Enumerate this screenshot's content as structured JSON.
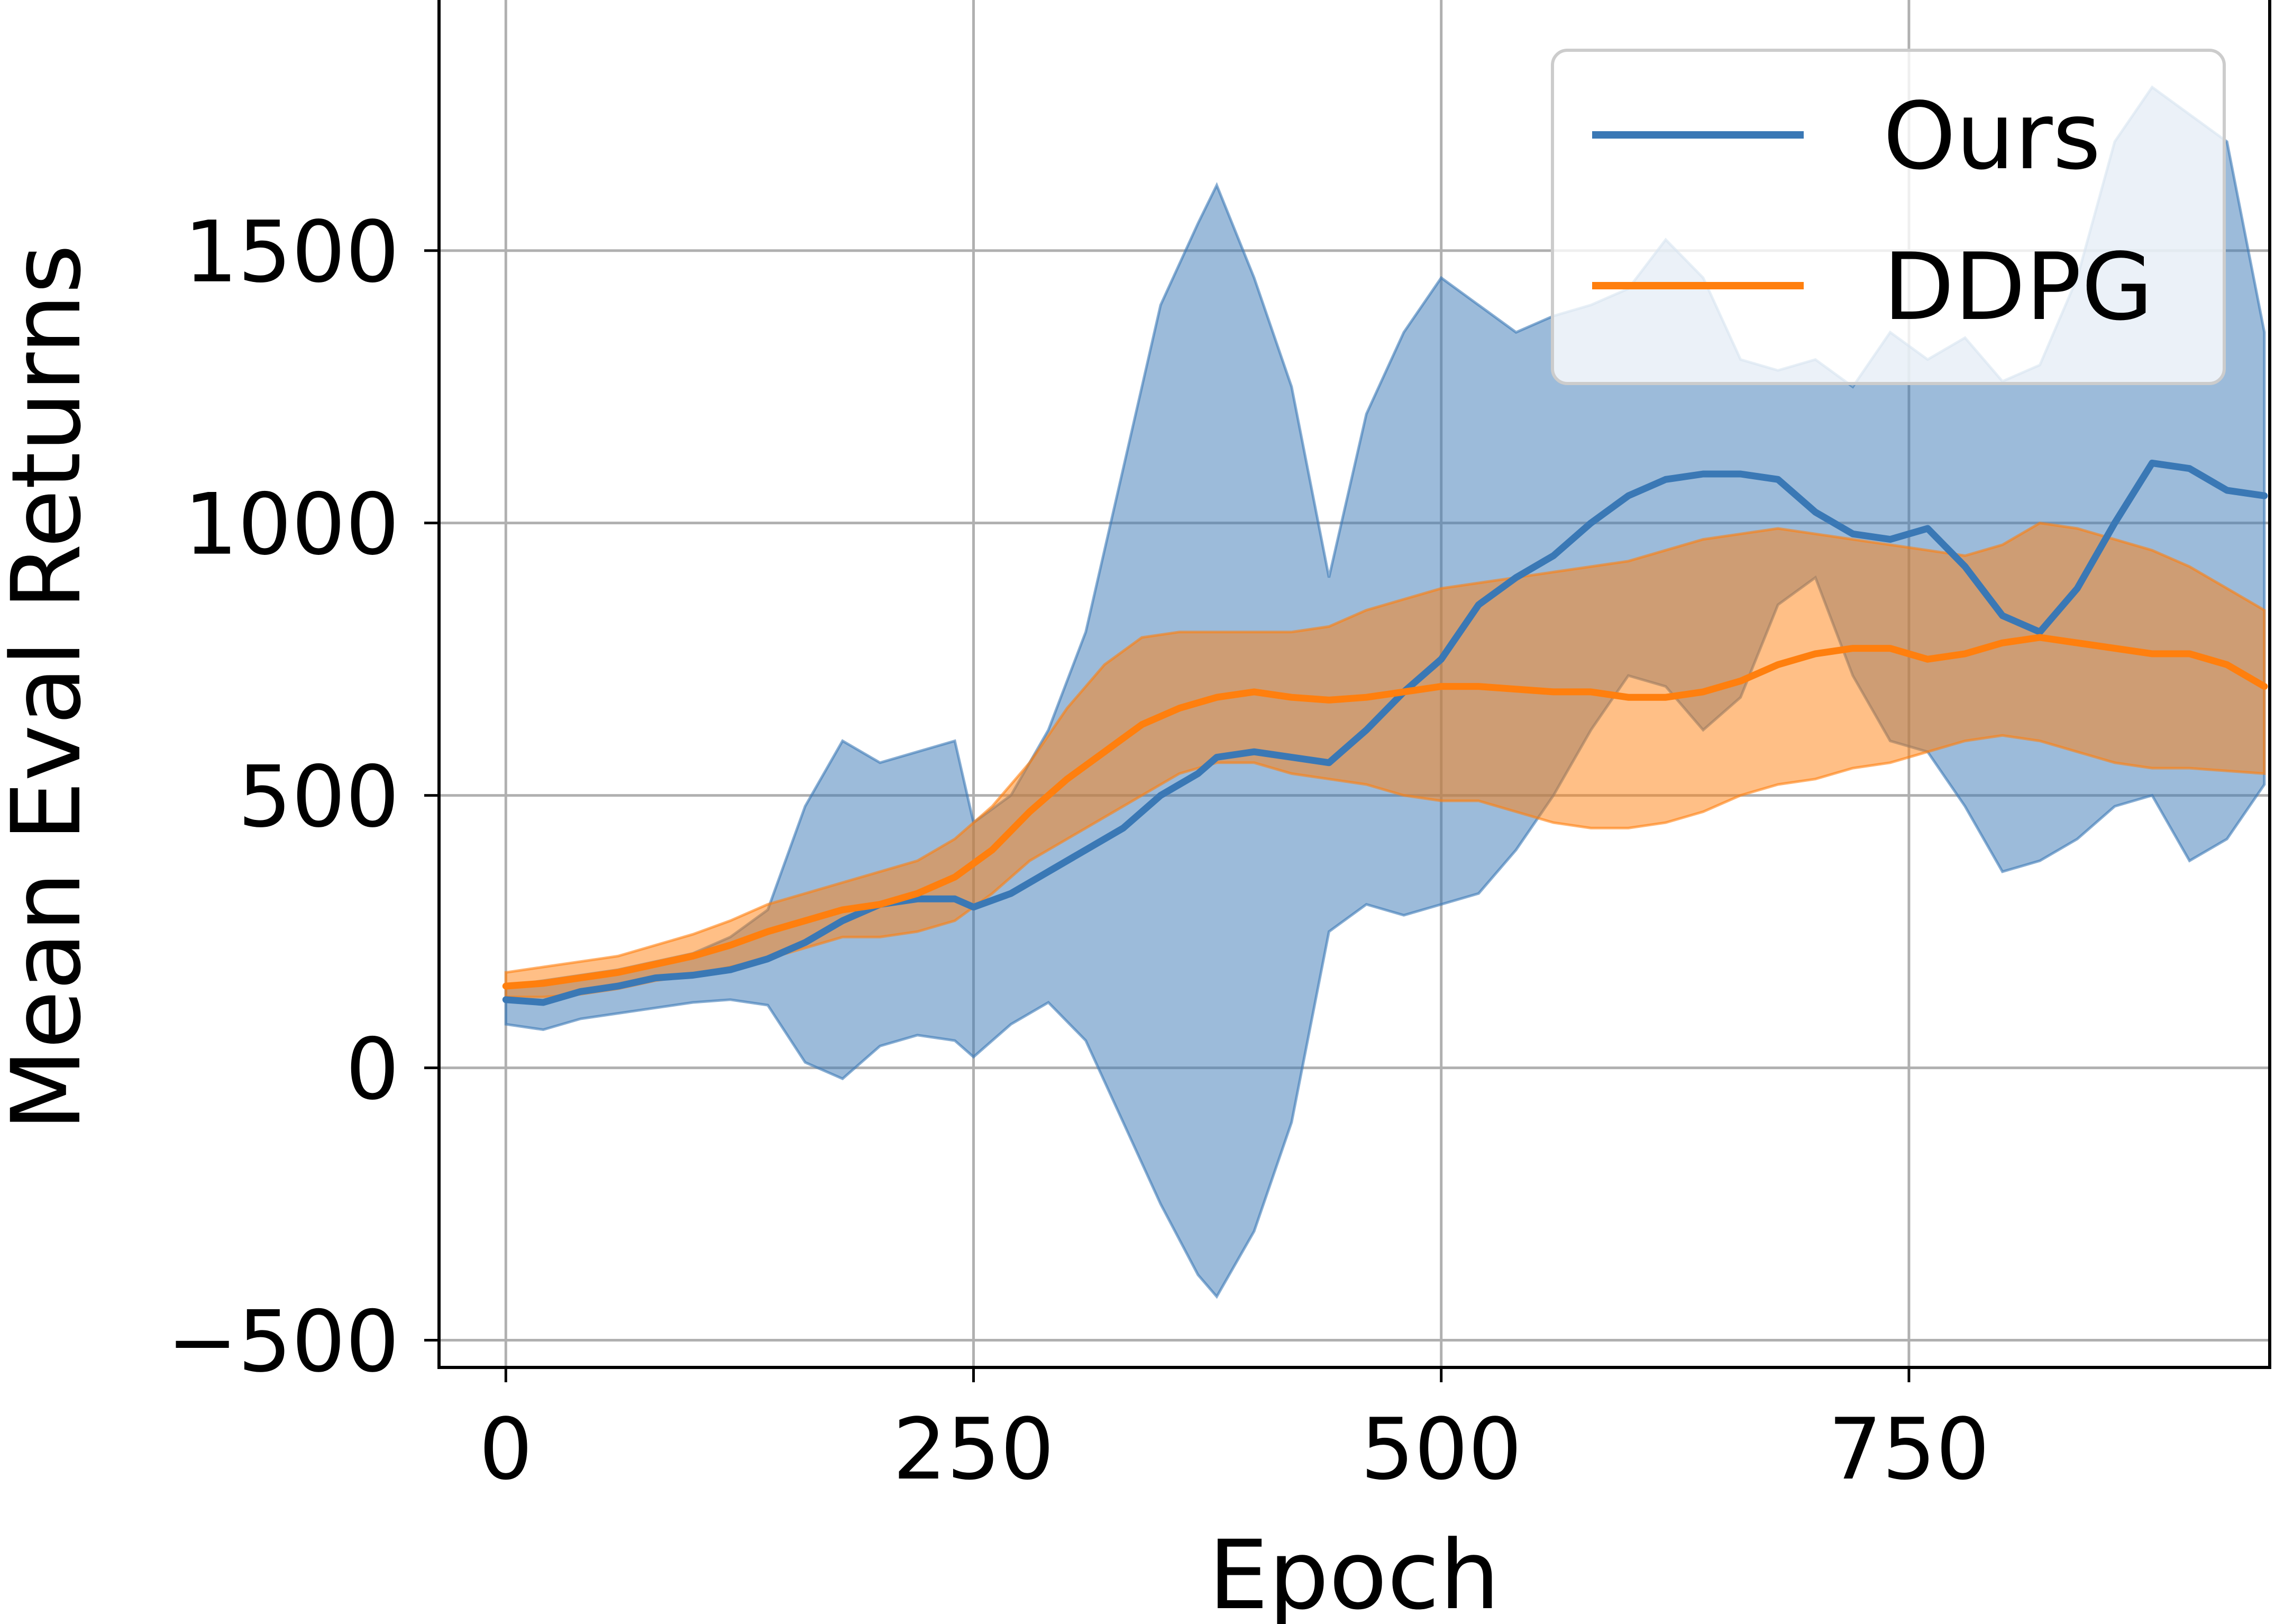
{
  "chart_data": {
    "type": "line",
    "xlabel": "Epoch",
    "ylabel": "Mean Eval Returns",
    "xlim": [
      -150,
      3960
    ],
    "ylim": [
      -550,
      1960
    ],
    "x_ticks": [
      0,
      250,
      500,
      750
    ],
    "x_tick_labels": [
      "0",
      "250",
      "500",
      "750"
    ],
    "y_ticks": [
      -500,
      0,
      500,
      1000,
      1500
    ],
    "y_tick_labels": [
      "−500",
      "0",
      "500",
      "1000",
      "1500"
    ],
    "grid": true,
    "legend_position": "top-right",
    "series": [
      {
        "name": "Ours",
        "color": "#3a78b5",
        "x": [
          0,
          20,
          40,
          60,
          80,
          100,
          120,
          140,
          160,
          180,
          200,
          220,
          240,
          250,
          270,
          290,
          310,
          330,
          350,
          370,
          380,
          400,
          420,
          440,
          460,
          480,
          500,
          520,
          540,
          560,
          580,
          600,
          620,
          640,
          660,
          680,
          700,
          720,
          740,
          760,
          780,
          800,
          820,
          840,
          860,
          880,
          900,
          920,
          940
        ],
        "mean": [
          125,
          120,
          140,
          150,
          165,
          170,
          180,
          200,
          230,
          270,
          300,
          310,
          310,
          295,
          320,
          360,
          400,
          440,
          500,
          540,
          570,
          580,
          570,
          560,
          620,
          690,
          750,
          850,
          900,
          940,
          1000,
          1050,
          1080,
          1090,
          1090,
          1080,
          1020,
          980,
          970,
          990,
          920,
          830,
          800,
          880,
          1000,
          1110,
          1100,
          1060,
          1050
        ],
        "upper": [
          150,
          160,
          170,
          180,
          195,
          210,
          240,
          290,
          480,
          600,
          560,
          580,
          600,
          450,
          500,
          620,
          800,
          1100,
          1400,
          1550,
          1620,
          1450,
          1250,
          900,
          1200,
          1350,
          1450,
          1400,
          1350,
          1380,
          1400,
          1430,
          1520,
          1450,
          1300,
          1280,
          1300,
          1250,
          1350,
          1300,
          1340,
          1260,
          1290,
          1450,
          1700,
          1800,
          1750,
          1700,
          1350
        ],
        "lower": [
          80,
          70,
          90,
          100,
          110,
          120,
          125,
          115,
          10,
          -20,
          40,
          60,
          50,
          20,
          80,
          120,
          50,
          -100,
          -250,
          -380,
          -420,
          -300,
          -100,
          250,
          300,
          280,
          300,
          320,
          400,
          500,
          620,
          720,
          700,
          620,
          680,
          850,
          900,
          720,
          600,
          580,
          480,
          360,
          380,
          420,
          480,
          500,
          380,
          420,
          520
        ]
      },
      {
        "name": "DDPG",
        "color": "#ff7f0e",
        "x": [
          0,
          20,
          40,
          60,
          80,
          100,
          120,
          140,
          160,
          180,
          200,
          220,
          240,
          260,
          280,
          300,
          320,
          340,
          360,
          380,
          400,
          420,
          440,
          460,
          480,
          500,
          520,
          540,
          560,
          580,
          600,
          620,
          640,
          660,
          680,
          700,
          720,
          740,
          760,
          780,
          800,
          820,
          840,
          860,
          880,
          900,
          920,
          940
        ],
        "mean": [
          150,
          155,
          165,
          175,
          190,
          205,
          225,
          250,
          270,
          290,
          300,
          320,
          350,
          400,
          470,
          530,
          580,
          630,
          660,
          680,
          690,
          680,
          675,
          680,
          690,
          700,
          700,
          695,
          690,
          690,
          680,
          680,
          690,
          710,
          740,
          760,
          770,
          770,
          750,
          760,
          780,
          790,
          780,
          770,
          760,
          760,
          740,
          700
        ],
        "upper": [
          175,
          185,
          195,
          205,
          225,
          245,
          270,
          300,
          320,
          340,
          360,
          380,
          420,
          480,
          560,
          660,
          740,
          790,
          800,
          800,
          800,
          800,
          810,
          840,
          860,
          880,
          890,
          900,
          910,
          920,
          930,
          950,
          970,
          980,
          990,
          980,
          970,
          960,
          950,
          940,
          960,
          1000,
          990,
          970,
          950,
          920,
          880,
          840
        ],
        "lower": [
          130,
          130,
          135,
          145,
          160,
          170,
          185,
          200,
          220,
          240,
          240,
          250,
          270,
          320,
          380,
          420,
          460,
          500,
          540,
          560,
          560,
          540,
          530,
          520,
          500,
          490,
          490,
          470,
          450,
          440,
          440,
          450,
          470,
          500,
          520,
          530,
          550,
          560,
          580,
          600,
          610,
          600,
          580,
          560,
          550,
          550,
          545,
          540
        ]
      }
    ]
  }
}
